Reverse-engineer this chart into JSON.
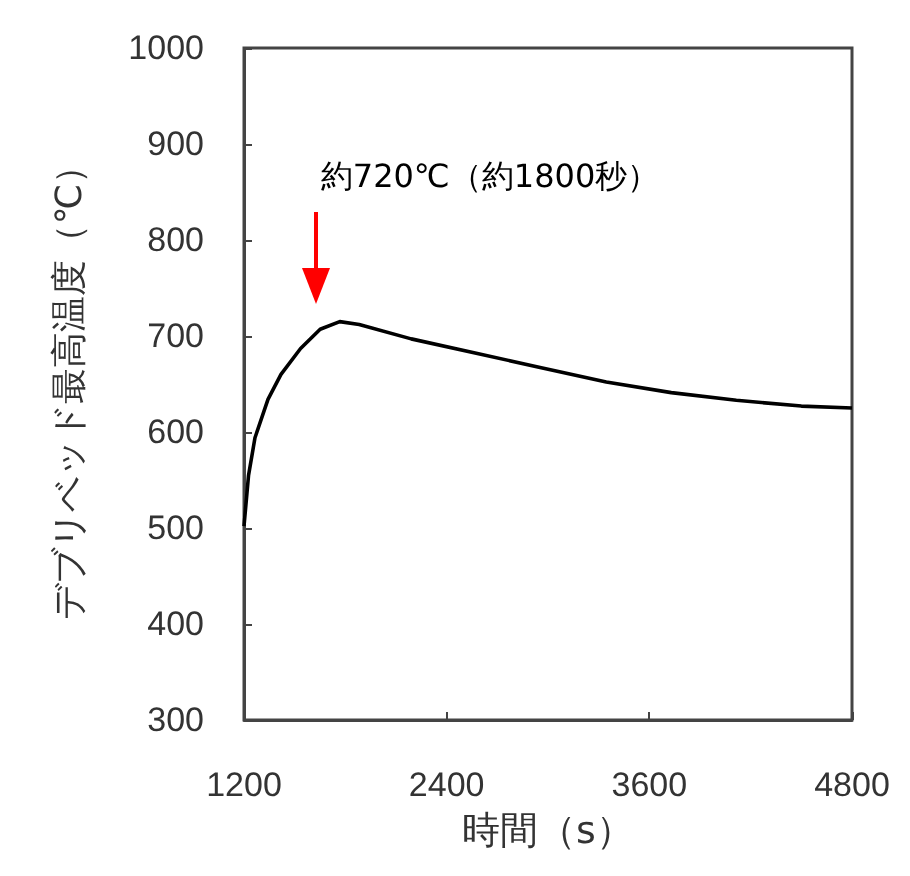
{
  "chart_data": {
    "type": "line",
    "xlabel": "時間（s）",
    "ylabel": "デブリベッド最高温度（℃）",
    "x": [
      1200,
      1227,
      1265,
      1342,
      1419,
      1535,
      1651,
      1767,
      1882,
      2190,
      2575,
      2960,
      3345,
      3730,
      4115,
      4500,
      4800
    ],
    "series": [
      {
        "color": "#000000",
        "values": [
          502,
          555,
          594,
          634,
          660,
          687,
          707,
          715,
          712,
          697,
          682,
          667,
          652,
          641,
          633,
          627,
          625
        ]
      }
    ],
    "xlim": [
      1200,
      4800
    ],
    "xticks": [
      1200,
      2400,
      3600,
      4800
    ],
    "ylim": [
      300,
      1000
    ],
    "yticks": [
      300,
      400,
      500,
      600,
      700,
      800,
      900,
      1000
    ],
    "grid": false,
    "marker": "none",
    "line_style": "solid",
    "annotations": [
      "約720℃（約1800秒）"
    ]
  }
}
